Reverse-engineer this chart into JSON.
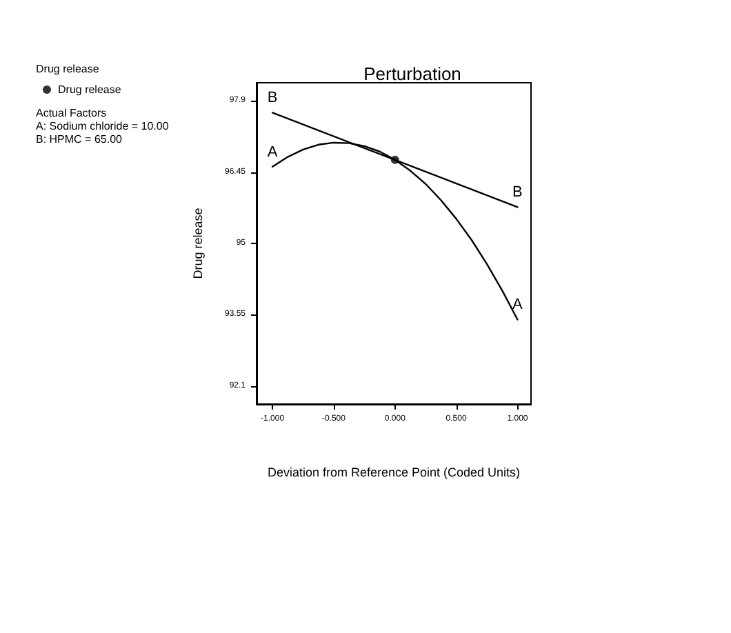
{
  "chart_data": {
    "type": "line",
    "title": "Perturbation",
    "xlabel": "Deviation from Reference Point (Coded Units)",
    "ylabel": "Drug release",
    "legend_title": "Drug release",
    "legend": "top left",
    "marker": "none",
    "line_style": "solid",
    "grid": false,
    "xlim": [
      -1.13,
      1.11
    ],
    "ylim": [
      91.73,
      98.27
    ],
    "xticks": [
      {
        "value": -1,
        "label": "-1.000"
      },
      {
        "value": -0.5,
        "label": "-0.500"
      },
      {
        "value": 0,
        "label": "0.000"
      },
      {
        "value": 0.5,
        "label": "0.500"
      },
      {
        "value": 1,
        "label": "1.000"
      }
    ],
    "yticks": [
      92.1,
      93.55,
      95,
      96.45,
      97.9
    ],
    "series": [
      {
        "name": "A",
        "color": "#000000",
        "x": [
          -1,
          -0.875,
          -0.75,
          -0.625,
          -0.5,
          -0.375,
          -0.25,
          -0.125,
          0,
          0.125,
          0.25,
          0.375,
          0.5,
          0.625,
          0.75,
          0.875,
          1
        ],
        "values": [
          96.56,
          96.76,
          96.91,
          97.01,
          97.05,
          97.04,
          96.98,
          96.87,
          96.7,
          96.48,
          96.21,
          95.88,
          95.5,
          95.07,
          94.58,
          94.04,
          93.45
        ]
      },
      {
        "name": "B",
        "color": "#000000",
        "x": [
          -1,
          0,
          1
        ],
        "values": [
          97.66,
          96.7,
          95.74
        ]
      },
      {
        "name": "Drug release",
        "type": "scatter",
        "marker": "circle",
        "color": "#000000",
        "x": [
          0
        ],
        "values": [
          96.7
        ]
      }
    ],
    "annotations": [
      "Actual Factors",
      "A: Sodium chloride = 10.00",
      "B: HPMC = 65.00"
    ]
  }
}
